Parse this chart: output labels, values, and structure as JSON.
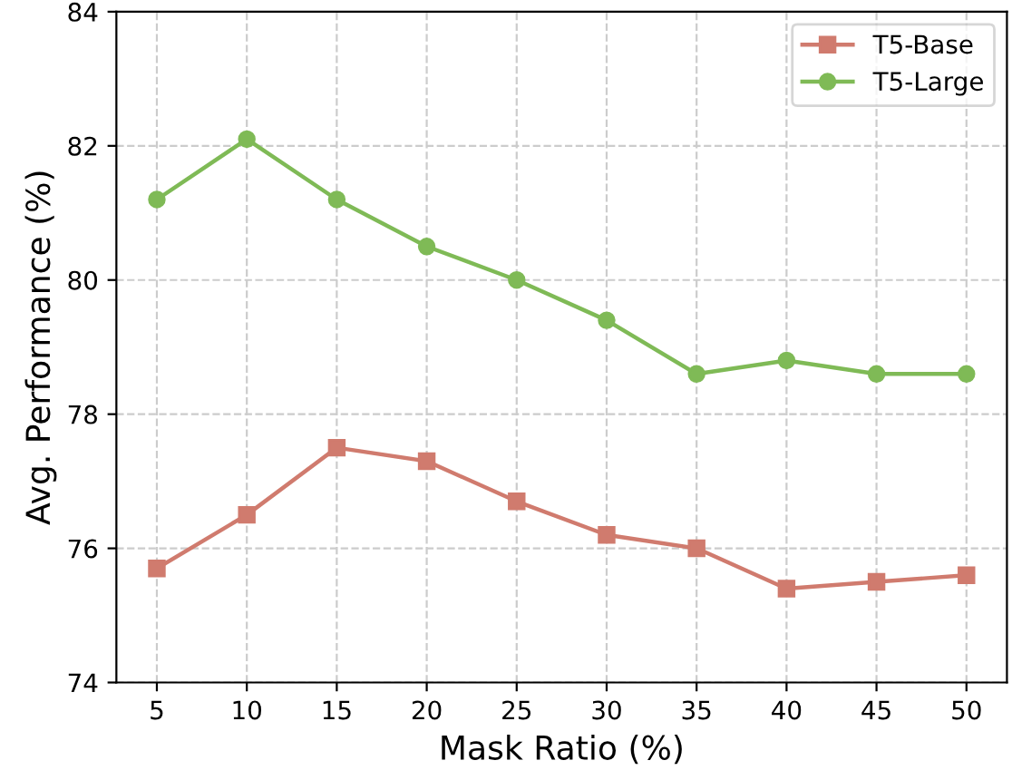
{
  "chart_data": {
    "type": "line",
    "xlabel": "Mask Ratio (%)",
    "ylabel": "Avg. Performance (%)",
    "x": [
      5,
      10,
      15,
      20,
      25,
      30,
      35,
      40,
      45,
      50
    ],
    "series": [
      {
        "name": "T5-Base",
        "color": "#d07b6e",
        "marker": "square",
        "values": [
          75.7,
          76.5,
          77.5,
          77.3,
          76.7,
          76.2,
          76.0,
          75.4,
          75.5,
          75.6
        ]
      },
      {
        "name": "T5-Large",
        "color": "#7fba56",
        "marker": "circle",
        "values": [
          81.2,
          82.1,
          81.2,
          80.5,
          80.0,
          79.4,
          78.6,
          78.8,
          78.6,
          78.6
        ]
      }
    ],
    "xlim": [
      2.75,
      52.25
    ],
    "xticks": [
      5,
      10,
      15,
      20,
      25,
      30,
      35,
      40,
      45,
      50
    ],
    "ylim": [
      74,
      84
    ],
    "yticks": [
      74,
      76,
      78,
      80,
      82,
      84
    ],
    "grid": true,
    "legend": "top right",
    "line_style": "solid"
  }
}
